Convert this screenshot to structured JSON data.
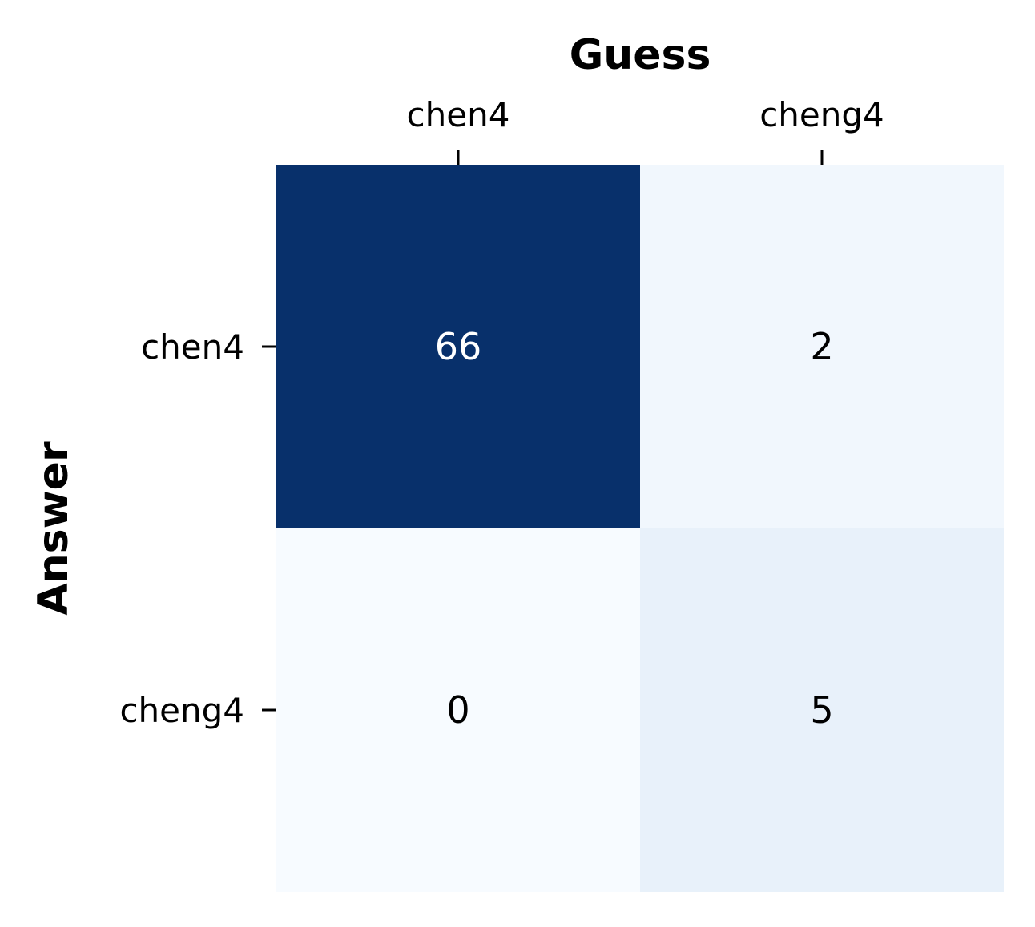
{
  "chart_data": {
    "type": "heatmap",
    "title": "",
    "xlabel": "Guess",
    "ylabel": "Answer",
    "x_categories": [
      "chen4",
      "cheng4"
    ],
    "y_categories": [
      "chen4",
      "cheng4"
    ],
    "values": [
      [
        66,
        2
      ],
      [
        0,
        5
      ]
    ],
    "x_axis_position": "top",
    "colormap": "Blues",
    "color_range": [
      0,
      66
    ],
    "colorbar": false,
    "grid": false,
    "colors": {
      "low": "#f7fbff",
      "high": "#08306b",
      "text_dark": "#000000",
      "text_light": "#ffffff"
    }
  }
}
